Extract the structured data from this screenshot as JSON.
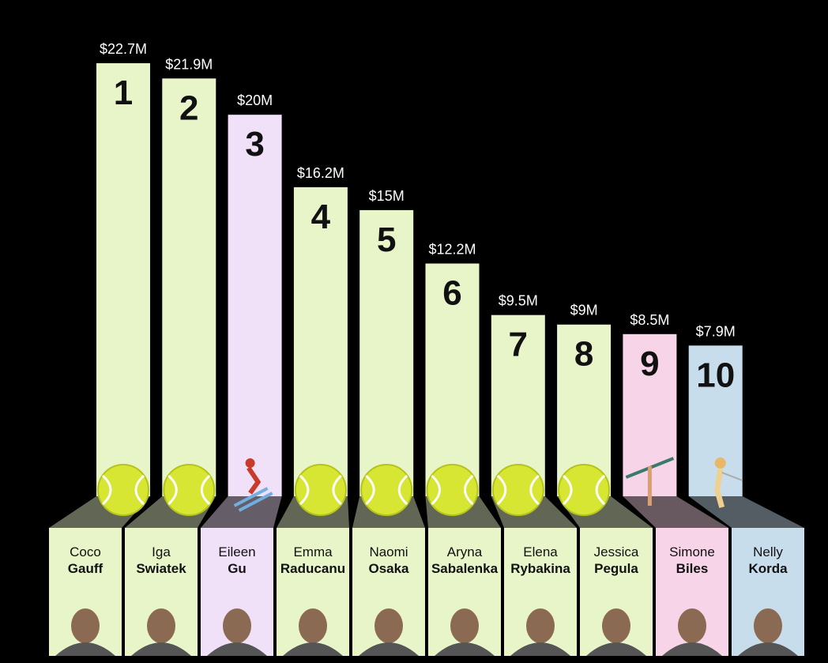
{
  "chart_data": {
    "type": "bar",
    "title": "",
    "xlabel": "",
    "ylabel": "",
    "ylim": [
      0,
      22.7
    ],
    "grid": false,
    "legend": "none",
    "categories": [
      "Coco Gauff",
      "Iga Swiatek",
      "Eileen Gu",
      "Emma Raducanu",
      "Naomi Osaka",
      "Aryna Sabalenka",
      "Elena Rybakina",
      "Jessica Pegula",
      "Simone Biles",
      "Nelly Korda"
    ],
    "values": [
      22.7,
      21.9,
      20,
      16.2,
      15,
      12.2,
      9.5,
      9,
      8.5,
      7.9
    ],
    "bars": [
      {
        "rank": "1",
        "value_label": "$22.7M",
        "first": "Coco",
        "last": "Gauff",
        "sport": "tennis",
        "icon": "tennis-ball-icon",
        "color": "#e8f5c8"
      },
      {
        "rank": "2",
        "value_label": "$21.9M",
        "first": "Iga",
        "last": "Swiatek",
        "sport": "tennis",
        "icon": "tennis-ball-icon",
        "color": "#e8f5c8"
      },
      {
        "rank": "3",
        "value_label": "$20M",
        "first": "Eileen",
        "last": "Gu",
        "sport": "skiing",
        "icon": "skier-icon",
        "color": "#f0e0f8"
      },
      {
        "rank": "4",
        "value_label": "$16.2M",
        "first": "Emma",
        "last": "Raducanu",
        "sport": "tennis",
        "icon": "tennis-ball-icon",
        "color": "#e8f5c8"
      },
      {
        "rank": "5",
        "value_label": "$15M",
        "first": "Naomi",
        "last": "Osaka",
        "sport": "tennis",
        "icon": "tennis-ball-icon",
        "color": "#e8f5c8"
      },
      {
        "rank": "6",
        "value_label": "$12.2M",
        "first": "Aryna",
        "last": "Sabalenka",
        "sport": "tennis",
        "icon": "tennis-ball-icon",
        "color": "#e8f5c8"
      },
      {
        "rank": "7",
        "value_label": "$9.5M",
        "first": "Elena",
        "last": "Rybakina",
        "sport": "tennis",
        "icon": "tennis-ball-icon",
        "color": "#e8f5c8"
      },
      {
        "rank": "8",
        "value_label": "$9M",
        "first": "Jessica",
        "last": "Pegula",
        "sport": "tennis",
        "icon": "tennis-ball-icon",
        "color": "#e8f5c8"
      },
      {
        "rank": "9",
        "value_label": "$8.5M",
        "first": "Simone",
        "last": "Biles",
        "sport": "gymnastics",
        "icon": "gymnast-icon",
        "color": "#f8d4e8"
      },
      {
        "rank": "10",
        "value_label": "$7.9M",
        "first": "Nelly",
        "last": "Korda",
        "sport": "golf",
        "icon": "golfer-icon",
        "color": "#c8ddec"
      }
    ]
  }
}
